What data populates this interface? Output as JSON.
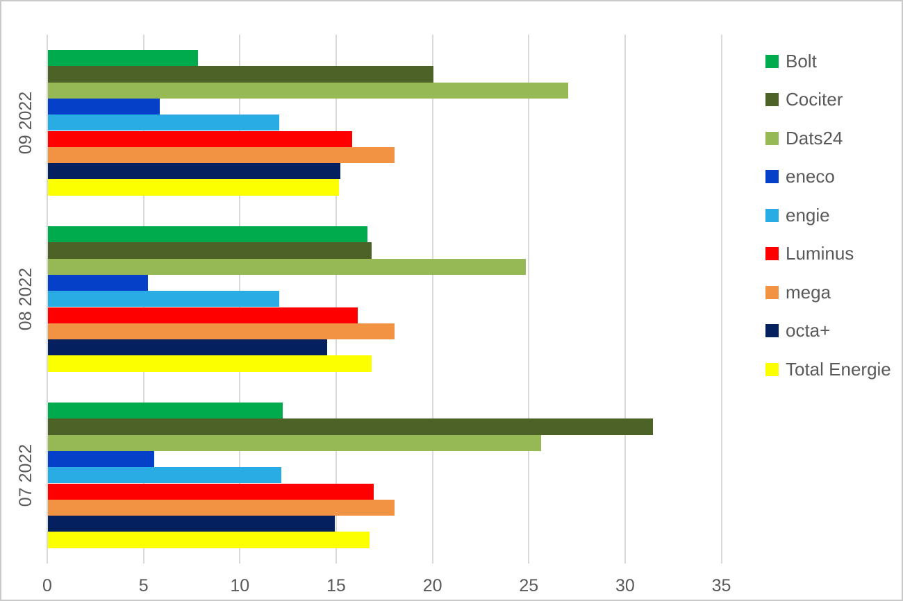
{
  "chart_data": {
    "type": "bar",
    "orientation": "horizontal",
    "title": "",
    "xlabel": "",
    "ylabel": "",
    "categories": [
      "09 2022",
      "08 2022",
      "07 2022"
    ],
    "series": [
      {
        "name": "Bolt",
        "color": "#00AB4E",
        "values": [
          7.8,
          16.6,
          12.2
        ]
      },
      {
        "name": "Cociter",
        "color": "#4D6227",
        "values": [
          20.0,
          16.8,
          31.4
        ]
      },
      {
        "name": "Dats24",
        "color": "#96B956",
        "values": [
          27.0,
          24.8,
          25.6
        ]
      },
      {
        "name": "eneco",
        "color": "#0540C8",
        "values": [
          5.8,
          5.2,
          5.5
        ]
      },
      {
        "name": "engie",
        "color": "#29ACE3",
        "values": [
          12.0,
          12.0,
          12.1
        ]
      },
      {
        "name": "Luminus",
        "color": "#FF0000",
        "values": [
          15.8,
          16.1,
          16.9
        ]
      },
      {
        "name": "mega",
        "color": "#F29344",
        "values": [
          18.0,
          18.0,
          18.0
        ]
      },
      {
        "name": "octa+",
        "color": "#04205F",
        "values": [
          15.2,
          14.5,
          14.9
        ]
      },
      {
        "name": "Total Energie",
        "color": "#FCFF00",
        "values": [
          15.1,
          16.8,
          16.7
        ]
      }
    ],
    "x_ticks": [
      0,
      5,
      10,
      15,
      20,
      25,
      30,
      35
    ],
    "xlim": [
      0,
      38
    ],
    "grid": true,
    "legend_position": "right"
  },
  "styles": {
    "axis_text_color": "#595959",
    "gridline_color": "#D9D9D9",
    "canvas_border_color": "#C9C9C9",
    "background": "#FFFFFF"
  }
}
